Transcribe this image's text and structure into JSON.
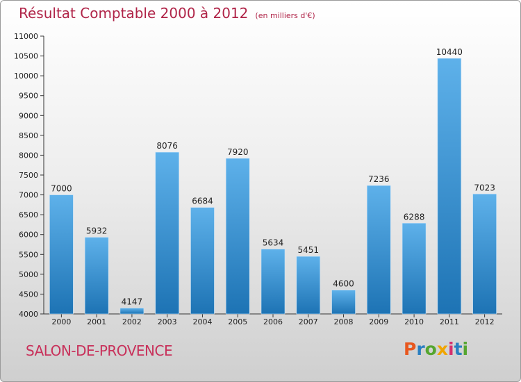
{
  "header": {
    "title": "Résultat Comptable 2000 à 2012",
    "unit": "(en milliers d'€)"
  },
  "footer": {
    "place": "SALON-DE-PROVENCE",
    "logo": "Proxiti",
    "logo_colors": [
      "#e8571e",
      "#2a7fc1",
      "#55a630",
      "#f0a500",
      "#d62f6d",
      "#2a7fc1",
      "#55a630"
    ]
  },
  "colors": {
    "bar_top": "#5eb1ea",
    "bar_bottom": "#1d73b4",
    "title": "#b02448",
    "place": "#c8305a"
  },
  "chart_data": {
    "type": "bar",
    "title": "Résultat Comptable 2000 à 2012",
    "subtitle": "(en milliers d'€)",
    "xlabel": "",
    "ylabel": "",
    "categories": [
      "2000",
      "2001",
      "2002",
      "2003",
      "2004",
      "2005",
      "2006",
      "2007",
      "2008",
      "2009",
      "2010",
      "2011",
      "2012"
    ],
    "values": [
      7000,
      5932,
      4147,
      8076,
      6684,
      7920,
      5634,
      5451,
      4600,
      7236,
      6288,
      10440,
      7023
    ],
    "ylim": [
      4000,
      11000
    ],
    "yticks": [
      "4000",
      "4500",
      "5000",
      "5500",
      "6000",
      "6500",
      "7000",
      "7500",
      "8000",
      "8500",
      "9000",
      "9500",
      "10000",
      "10500",
      "11000"
    ],
    "grid": false
  }
}
